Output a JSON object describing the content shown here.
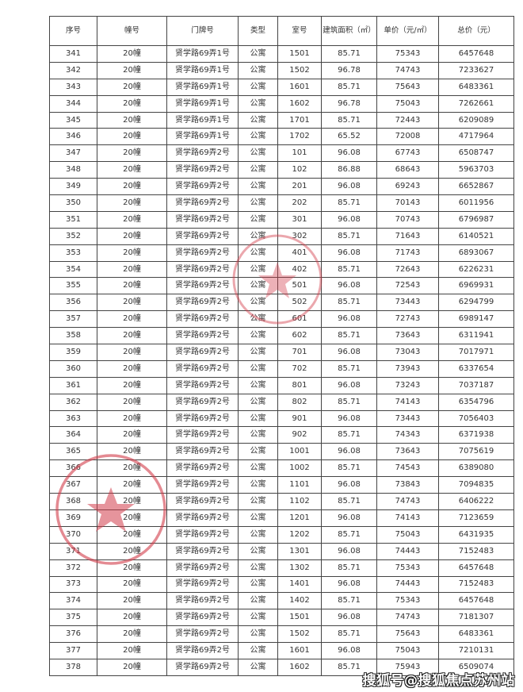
{
  "headers": [
    "序号",
    "幢号",
    "门牌号",
    "类型",
    "室号",
    "建筑面积（㎡）",
    "单价（元/㎡）",
    "总价（元）"
  ],
  "rows": [
    [
      "341",
      "20幢",
      "贤学路69弄1号",
      "公寓",
      "1501",
      "85.71",
      "75343",
      "6457648"
    ],
    [
      "342",
      "20幢",
      "贤学路69弄1号",
      "公寓",
      "1502",
      "96.78",
      "74743",
      "7233627"
    ],
    [
      "343",
      "20幢",
      "贤学路69弄1号",
      "公寓",
      "1601",
      "85.71",
      "75643",
      "6483361"
    ],
    [
      "344",
      "20幢",
      "贤学路69弄1号",
      "公寓",
      "1602",
      "96.78",
      "75043",
      "7262661"
    ],
    [
      "345",
      "20幢",
      "贤学路69弄1号",
      "公寓",
      "1701",
      "85.71",
      "72443",
      "6209089"
    ],
    [
      "346",
      "20幢",
      "贤学路69弄1号",
      "公寓",
      "1702",
      "65.52",
      "72008",
      "4717964"
    ],
    [
      "347",
      "20幢",
      "贤学路69弄2号",
      "公寓",
      "101",
      "96.08",
      "67743",
      "6508747"
    ],
    [
      "348",
      "20幢",
      "贤学路69弄2号",
      "公寓",
      "102",
      "86.88",
      "68643",
      "5963703"
    ],
    [
      "349",
      "20幢",
      "贤学路69弄2号",
      "公寓",
      "201",
      "96.08",
      "69243",
      "6652867"
    ],
    [
      "350",
      "20幢",
      "贤学路69弄2号",
      "公寓",
      "202",
      "85.71",
      "70143",
      "6011956"
    ],
    [
      "351",
      "20幢",
      "贤学路69弄2号",
      "公寓",
      "301",
      "96.08",
      "70743",
      "6796987"
    ],
    [
      "352",
      "20幢",
      "贤学路69弄2号",
      "公寓",
      "302",
      "85.71",
      "71643",
      "6140521"
    ],
    [
      "353",
      "20幢",
      "贤学路69弄2号",
      "公寓",
      "401",
      "96.08",
      "71743",
      "6893067"
    ],
    [
      "354",
      "20幢",
      "贤学路69弄2号",
      "公寓",
      "402",
      "85.71",
      "72643",
      "6226231"
    ],
    [
      "355",
      "20幢",
      "贤学路69弄2号",
      "公寓",
      "501",
      "96.08",
      "72543",
      "6969931"
    ],
    [
      "356",
      "20幢",
      "贤学路69弄2号",
      "公寓",
      "502",
      "85.71",
      "73443",
      "6294799"
    ],
    [
      "357",
      "20幢",
      "贤学路69弄2号",
      "公寓",
      "601",
      "96.08",
      "72743",
      "6989147"
    ],
    [
      "358",
      "20幢",
      "贤学路69弄2号",
      "公寓",
      "602",
      "85.71",
      "73643",
      "6311941"
    ],
    [
      "359",
      "20幢",
      "贤学路69弄2号",
      "公寓",
      "701",
      "96.08",
      "73043",
      "7017971"
    ],
    [
      "360",
      "20幢",
      "贤学路69弄2号",
      "公寓",
      "702",
      "85.71",
      "73943",
      "6337654"
    ],
    [
      "361",
      "20幢",
      "贤学路69弄2号",
      "公寓",
      "801",
      "96.08",
      "73243",
      "7037187"
    ],
    [
      "362",
      "20幢",
      "贤学路69弄2号",
      "公寓",
      "802",
      "85.71",
      "74143",
      "6354796"
    ],
    [
      "363",
      "20幢",
      "贤学路69弄2号",
      "公寓",
      "901",
      "96.08",
      "73443",
      "7056403"
    ],
    [
      "364",
      "20幢",
      "贤学路69弄2号",
      "公寓",
      "902",
      "85.71",
      "74343",
      "6371938"
    ],
    [
      "365",
      "20幢",
      "贤学路69弄2号",
      "公寓",
      "1001",
      "96.08",
      "73643",
      "7075619"
    ],
    [
      "366",
      "20幢",
      "贤学路69弄2号",
      "公寓",
      "1002",
      "85.71",
      "74543",
      "6389080"
    ],
    [
      "367",
      "20幢",
      "贤学路69弄2号",
      "公寓",
      "1101",
      "96.08",
      "73843",
      "7094835"
    ],
    [
      "368",
      "20幢",
      "贤学路69弄2号",
      "公寓",
      "1102",
      "85.71",
      "74743",
      "6406222"
    ],
    [
      "369",
      "20幢",
      "贤学路69弄2号",
      "公寓",
      "1201",
      "96.08",
      "74143",
      "7123659"
    ],
    [
      "370",
      "20幢",
      "贤学路69弄2号",
      "公寓",
      "1202",
      "85.71",
      "75043",
      "6431935"
    ],
    [
      "371",
      "20幢",
      "贤学路69弄2号",
      "公寓",
      "1301",
      "96.08",
      "74443",
      "7152483"
    ],
    [
      "372",
      "20幢",
      "贤学路69弄2号",
      "公寓",
      "1302",
      "85.71",
      "75343",
      "6457648"
    ],
    [
      "373",
      "20幢",
      "贤学路69弄2号",
      "公寓",
      "1401",
      "96.08",
      "74443",
      "7152483"
    ],
    [
      "374",
      "20幢",
      "贤学路69弄2号",
      "公寓",
      "1402",
      "85.71",
      "75343",
      "6457648"
    ],
    [
      "375",
      "20幢",
      "贤学路69弄2号",
      "公寓",
      "1501",
      "96.08",
      "74743",
      "7181307"
    ],
    [
      "376",
      "20幢",
      "贤学路69弄2号",
      "公寓",
      "1502",
      "85.71",
      "75643",
      "6483361"
    ],
    [
      "377",
      "20幢",
      "贤学路69弄2号",
      "公寓",
      "1601",
      "96.08",
      "75043",
      "7210131"
    ],
    [
      "378",
      "20幢",
      "贤学路69弄2号",
      "公寓",
      "1602",
      "85.71",
      "75943",
      "6509074"
    ]
  ],
  "watermark": "搜狐号@搜狐焦点苏州站",
  "stamp_color": "#d23c4a"
}
